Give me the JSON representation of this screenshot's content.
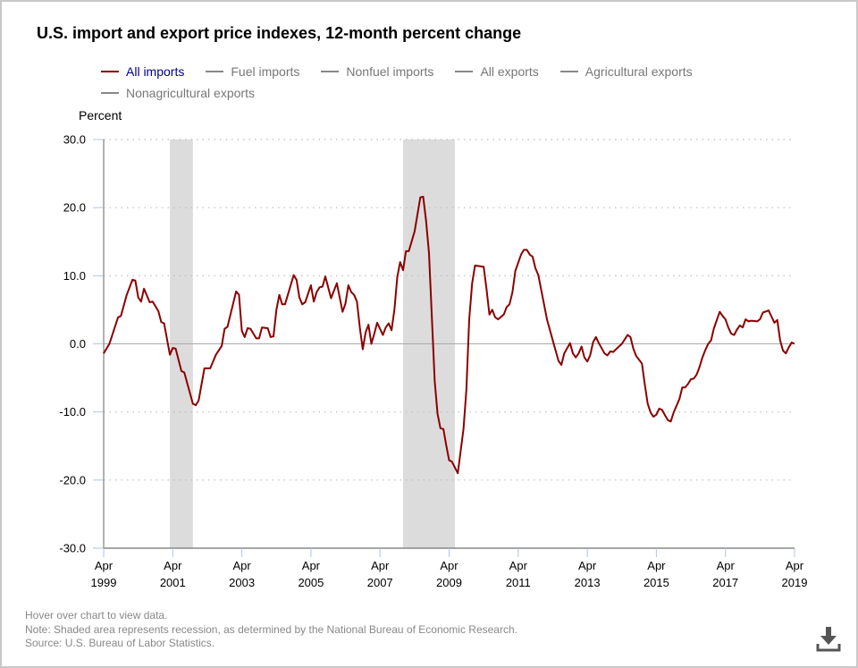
{
  "chart_data": {
    "type": "line",
    "title": "U.S. import and export price indexes, 12-month percent change",
    "ylabel": "Percent",
    "ylim": [
      -30,
      30
    ],
    "yticks": [
      "30.0",
      "20.0",
      "10.0",
      "0.0",
      "-10.0",
      "-20.0",
      "-30.0"
    ],
    "ytick_values": [
      30,
      20,
      10,
      0,
      -10,
      -20,
      -30
    ],
    "xlim": [
      "1999-04",
      "2019-04"
    ],
    "xticks": [
      {
        "month": "Apr",
        "year": "1999"
      },
      {
        "month": "Apr",
        "year": "2001"
      },
      {
        "month": "Apr",
        "year": "2003"
      },
      {
        "month": "Apr",
        "year": "2005"
      },
      {
        "month": "Apr",
        "year": "2007"
      },
      {
        "month": "Apr",
        "year": "2009"
      },
      {
        "month": "Apr",
        "year": "2011"
      },
      {
        "month": "Apr",
        "year": "2013"
      },
      {
        "month": "Apr",
        "year": "2015"
      },
      {
        "month": "Apr",
        "year": "2017"
      },
      {
        "month": "Apr",
        "year": "2019"
      }
    ],
    "grid": "horizontal dotted",
    "legend_placement": "top-left",
    "legend": [
      {
        "name": "All imports",
        "active": true
      },
      {
        "name": "Fuel imports",
        "active": false
      },
      {
        "name": "Nonfuel imports",
        "active": false
      },
      {
        "name": "All exports",
        "active": false
      },
      {
        "name": "Agricultural exports",
        "active": false
      },
      {
        "name": "Nonagricultural exports",
        "active": false
      }
    ],
    "recessions": [
      [
        "2001-03",
        "2001-11"
      ],
      [
        "2007-12",
        "2009-06"
      ]
    ],
    "colors": {
      "line": "#8b0000",
      "recession": "#dcdcdc",
      "grid": "#bbbbbb",
      "zero": "#aaaaaa",
      "tick": "#aec6e8"
    },
    "series": [
      {
        "name": "All imports",
        "points": [
          [
            "1999-04",
            -1.4
          ],
          [
            "1999-06",
            0.0
          ],
          [
            "1999-09",
            3.9
          ],
          [
            "1999-10",
            4.1
          ],
          [
            "1999-12",
            7.2
          ],
          [
            "2000-02",
            9.4
          ],
          [
            "2000-03",
            9.3
          ],
          [
            "2000-04",
            6.8
          ],
          [
            "2000-05",
            6.2
          ],
          [
            "2000-06",
            8.1
          ],
          [
            "2000-08",
            6.1
          ],
          [
            "2000-09",
            6.2
          ],
          [
            "2000-11",
            4.8
          ],
          [
            "2000-12",
            3.2
          ],
          [
            "2001-01",
            3.0
          ],
          [
            "2001-03",
            -1.6
          ],
          [
            "2001-04",
            -0.6
          ],
          [
            "2001-05",
            -0.7
          ],
          [
            "2001-07",
            -4.0
          ],
          [
            "2001-08",
            -4.2
          ],
          [
            "2001-11",
            -8.8
          ],
          [
            "2001-12",
            -9.0
          ],
          [
            "2002-01",
            -8.3
          ],
          [
            "2002-03",
            -3.6
          ],
          [
            "2002-05",
            -3.6
          ],
          [
            "2002-07",
            -1.6
          ],
          [
            "2002-09",
            -0.3
          ],
          [
            "2002-10",
            2.2
          ],
          [
            "2002-11",
            2.5
          ],
          [
            "2003-02",
            7.7
          ],
          [
            "2003-03",
            7.2
          ],
          [
            "2003-04",
            1.9
          ],
          [
            "2003-05",
            1.0
          ],
          [
            "2003-06",
            2.3
          ],
          [
            "2003-07",
            2.2
          ],
          [
            "2003-09",
            0.8
          ],
          [
            "2003-10",
            0.8
          ],
          [
            "2003-11",
            2.4
          ],
          [
            "2004-01",
            2.3
          ],
          [
            "2004-02",
            1.0
          ],
          [
            "2004-03",
            1.1
          ],
          [
            "2004-04",
            5.0
          ],
          [
            "2004-05",
            7.2
          ],
          [
            "2004-06",
            5.8
          ],
          [
            "2004-07",
            5.8
          ],
          [
            "2004-10",
            10.1
          ],
          [
            "2004-11",
            9.4
          ],
          [
            "2004-12",
            6.8
          ],
          [
            "2005-01",
            5.8
          ],
          [
            "2005-02",
            6.1
          ],
          [
            "2005-04",
            8.6
          ],
          [
            "2005-05",
            6.2
          ],
          [
            "2005-06",
            7.6
          ],
          [
            "2005-07",
            8.3
          ],
          [
            "2005-08",
            8.4
          ],
          [
            "2005-09",
            9.9
          ],
          [
            "2005-11",
            6.7
          ],
          [
            "2006-01",
            8.9
          ],
          [
            "2006-03",
            4.7
          ],
          [
            "2006-04",
            5.9
          ],
          [
            "2006-05",
            8.6
          ],
          [
            "2006-06",
            7.6
          ],
          [
            "2006-07",
            7.2
          ],
          [
            "2006-08",
            6.2
          ],
          [
            "2006-09",
            2.3
          ],
          [
            "2006-10",
            -0.8
          ],
          [
            "2006-11",
            1.7
          ],
          [
            "2006-12",
            2.8
          ],
          [
            "2007-01",
            0.0
          ],
          [
            "2007-02",
            1.5
          ],
          [
            "2007-03",
            3.1
          ],
          [
            "2007-04",
            2.2
          ],
          [
            "2007-05",
            1.3
          ],
          [
            "2007-06",
            2.4
          ],
          [
            "2007-07",
            3.0
          ],
          [
            "2007-08",
            2.0
          ],
          [
            "2007-09",
            5.0
          ],
          [
            "2007-10",
            9.8
          ],
          [
            "2007-11",
            12.0
          ],
          [
            "2007-12",
            10.8
          ],
          [
            "2008-01",
            13.6
          ],
          [
            "2008-02",
            13.6
          ],
          [
            "2008-04",
            16.5
          ],
          [
            "2008-06",
            21.5
          ],
          [
            "2008-07",
            21.6
          ],
          [
            "2008-08",
            18.1
          ],
          [
            "2008-09",
            13.3
          ],
          [
            "2008-11",
            -5.5
          ],
          [
            "2008-12",
            -10.3
          ],
          [
            "2009-01",
            -12.4
          ],
          [
            "2009-02",
            -12.5
          ],
          [
            "2009-03",
            -14.9
          ],
          [
            "2009-04",
            -17.1
          ],
          [
            "2009-05",
            -17.3
          ],
          [
            "2009-07",
            -19.0
          ],
          [
            "2009-09",
            -12.5
          ],
          [
            "2009-10",
            -6.8
          ],
          [
            "2009-11",
            3.6
          ],
          [
            "2009-12",
            8.9
          ],
          [
            "2010-01",
            11.5
          ],
          [
            "2010-04",
            11.3
          ],
          [
            "2010-05",
            8.0
          ],
          [
            "2010-06",
            4.3
          ],
          [
            "2010-07",
            5.0
          ],
          [
            "2010-08",
            3.9
          ],
          [
            "2010-09",
            3.6
          ],
          [
            "2010-11",
            4.3
          ],
          [
            "2010-12",
            5.4
          ],
          [
            "2011-01",
            5.8
          ],
          [
            "2011-02",
            7.6
          ],
          [
            "2011-03",
            10.7
          ],
          [
            "2011-05",
            13.1
          ],
          [
            "2011-06",
            13.8
          ],
          [
            "2011-07",
            13.8
          ],
          [
            "2011-08",
            13.1
          ],
          [
            "2011-09",
            12.8
          ],
          [
            "2011-10",
            11.1
          ],
          [
            "2011-11",
            10.1
          ],
          [
            "2012-02",
            3.6
          ],
          [
            "2012-04",
            0.5
          ],
          [
            "2012-06",
            -2.5
          ],
          [
            "2012-07",
            -3.1
          ],
          [
            "2012-08",
            -1.4
          ],
          [
            "2012-10",
            0.1
          ],
          [
            "2012-11",
            -1.4
          ],
          [
            "2012-12",
            -2.0
          ],
          [
            "2013-01",
            -1.4
          ],
          [
            "2013-02",
            -0.4
          ],
          [
            "2013-03",
            -2.0
          ],
          [
            "2013-04",
            -2.6
          ],
          [
            "2013-05",
            -1.7
          ],
          [
            "2013-06",
            0.2
          ],
          [
            "2013-07",
            1.0
          ],
          [
            "2013-08",
            0.1
          ],
          [
            "2013-10",
            -1.4
          ],
          [
            "2013-11",
            -1.7
          ],
          [
            "2013-12",
            -1.1
          ],
          [
            "2014-01",
            -1.2
          ],
          [
            "2014-03",
            -0.4
          ],
          [
            "2014-04",
            0.0
          ],
          [
            "2014-06",
            1.3
          ],
          [
            "2014-07",
            1.0
          ],
          [
            "2014-08",
            -0.7
          ],
          [
            "2014-09",
            -1.8
          ],
          [
            "2014-11",
            -2.9
          ],
          [
            "2014-12",
            -6.0
          ],
          [
            "2015-01",
            -8.8
          ],
          [
            "2015-02",
            -10.1
          ],
          [
            "2015-03",
            -10.7
          ],
          [
            "2015-04",
            -10.4
          ],
          [
            "2015-05",
            -9.5
          ],
          [
            "2015-06",
            -9.7
          ],
          [
            "2015-07",
            -10.5
          ],
          [
            "2015-08",
            -11.2
          ],
          [
            "2015-09",
            -11.4
          ],
          [
            "2015-10",
            -10.1
          ],
          [
            "2015-12",
            -8.1
          ],
          [
            "2016-01",
            -6.4
          ],
          [
            "2016-02",
            -6.4
          ],
          [
            "2016-03",
            -5.9
          ],
          [
            "2016-04",
            -5.2
          ],
          [
            "2016-05",
            -5.1
          ],
          [
            "2016-06",
            -4.5
          ],
          [
            "2016-07",
            -3.4
          ],
          [
            "2016-08",
            -2.0
          ],
          [
            "2016-09",
            -0.9
          ],
          [
            "2016-10",
            0.0
          ],
          [
            "2016-11",
            0.5
          ],
          [
            "2016-12",
            2.3
          ],
          [
            "2017-02",
            4.7
          ],
          [
            "2017-03",
            4.1
          ],
          [
            "2017-04",
            3.6
          ],
          [
            "2017-05",
            2.4
          ],
          [
            "2017-06",
            1.5
          ],
          [
            "2017-07",
            1.3
          ],
          [
            "2017-08",
            2.1
          ],
          [
            "2017-09",
            2.7
          ],
          [
            "2017-10",
            2.4
          ],
          [
            "2017-11",
            3.6
          ],
          [
            "2017-12",
            3.3
          ],
          [
            "2018-01",
            3.4
          ],
          [
            "2018-03",
            3.3
          ],
          [
            "2018-04",
            3.6
          ],
          [
            "2018-05",
            4.6
          ],
          [
            "2018-07",
            4.9
          ],
          [
            "2018-08",
            4.0
          ],
          [
            "2018-09",
            3.1
          ],
          [
            "2018-10",
            3.5
          ],
          [
            "2018-11",
            0.5
          ],
          [
            "2018-12",
            -1.0
          ],
          [
            "2019-01",
            -1.4
          ],
          [
            "2019-02",
            -0.5
          ],
          [
            "2019-03",
            0.2
          ],
          [
            "2019-04",
            0.0
          ]
        ]
      }
    ]
  },
  "footer": {
    "hover_note": "Hover over chart to view data.",
    "note": "Note: Shaded area represents recession, as determined by the National Bureau of Economic Research.",
    "source": "Source: U.S. Bureau of Labor Statistics."
  },
  "download": {
    "icon": "download-icon"
  }
}
